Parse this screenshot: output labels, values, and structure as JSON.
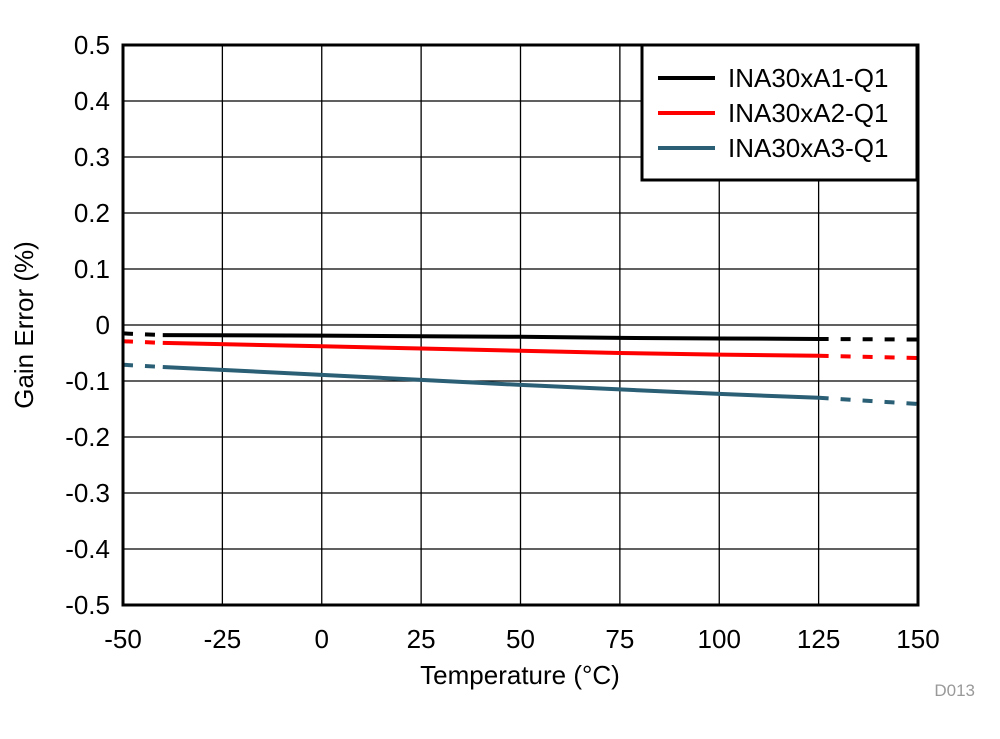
{
  "chart_data": {
    "type": "line",
    "title": "",
    "xlabel": "Temperature (°C)",
    "ylabel": "Gain Error (%)",
    "xlim": [
      -50,
      150
    ],
    "ylim": [
      -0.5,
      0.5
    ],
    "xticks": [
      "-50",
      "-25",
      "0",
      "25",
      "50",
      "75",
      "100",
      "125",
      "150"
    ],
    "yticks": [
      "0.5",
      "0.4",
      "0.3",
      "0.2",
      "0.1",
      "0",
      "-0.1",
      "-0.2",
      "-0.3",
      "-0.4",
      "-0.5"
    ],
    "xtick_values": [
      -50,
      -25,
      0,
      25,
      50,
      75,
      100,
      125,
      150
    ],
    "ytick_values": [
      0.5,
      0.4,
      0.3,
      0.2,
      0.1,
      0,
      -0.1,
      -0.2,
      -0.3,
      -0.4,
      -0.5
    ],
    "grid": true,
    "legend_position": "top-right",
    "x": [
      -50,
      -40,
      0,
      25,
      50,
      75,
      100,
      125,
      150
    ],
    "solid_range": [
      -40,
      125
    ],
    "series": [
      {
        "name": "INA30xA1-Q1",
        "color": "#000000",
        "values": [
          -0.015,
          -0.018,
          -0.019,
          -0.02,
          -0.021,
          -0.023,
          -0.024,
          -0.025,
          -0.026
        ]
      },
      {
        "name": "INA30xA2-Q1",
        "color": "#ff0000",
        "values": [
          -0.029,
          -0.032,
          -0.038,
          -0.042,
          -0.046,
          -0.05,
          -0.053,
          -0.055,
          -0.059
        ]
      },
      {
        "name": "INA30xA3-Q1",
        "color": "#2a5f75",
        "values": [
          -0.071,
          -0.075,
          -0.089,
          -0.098,
          -0.107,
          -0.115,
          -0.123,
          -0.13,
          -0.141
        ]
      }
    ],
    "annotation": "D013"
  }
}
